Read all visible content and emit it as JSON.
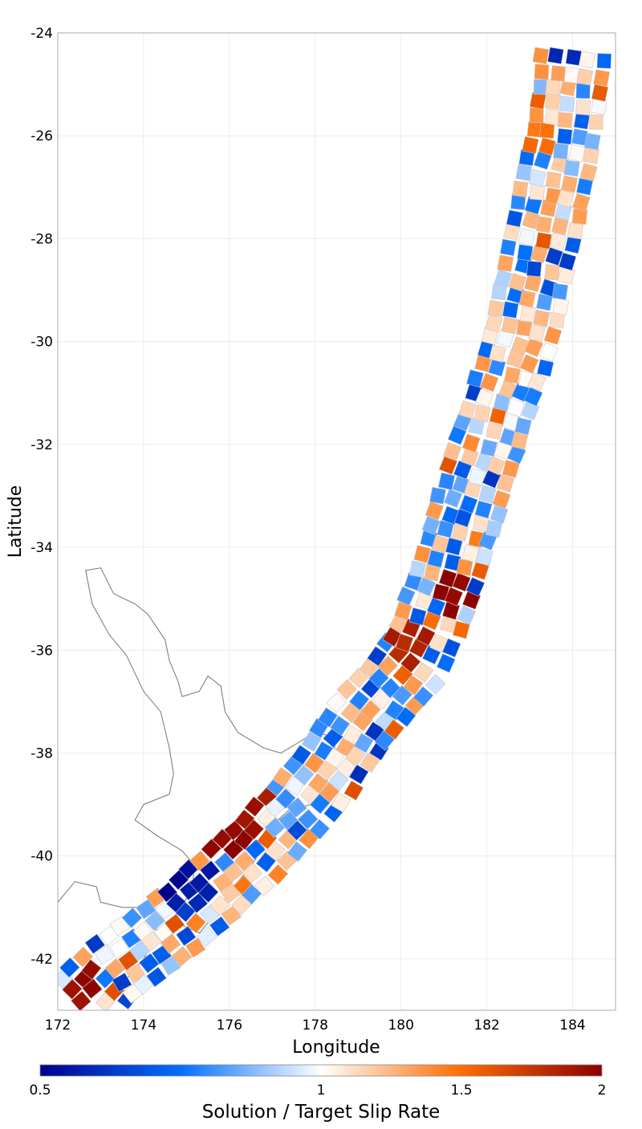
{
  "map": {
    "xlabel": "Longitude",
    "ylabel": "Latitude",
    "xlim": [
      172,
      185
    ],
    "ylim": [
      -43,
      -24
    ],
    "x_ticks": [
      {
        "value": 172,
        "label": "172"
      },
      {
        "value": 174,
        "label": "174"
      },
      {
        "value": 176,
        "label": "176"
      },
      {
        "value": 178,
        "label": "178"
      },
      {
        "value": 180,
        "label": "180"
      },
      {
        "value": 182,
        "label": "182"
      },
      {
        "value": 184,
        "label": "184"
      }
    ],
    "y_ticks": [
      {
        "value": -24,
        "label": "-24"
      },
      {
        "value": -26,
        "label": "-26"
      },
      {
        "value": -28,
        "label": "-28"
      },
      {
        "value": -30,
        "label": "-30"
      },
      {
        "value": -32,
        "label": "-32"
      },
      {
        "value": -34,
        "label": "-34"
      },
      {
        "value": -36,
        "label": "-36"
      },
      {
        "value": -38,
        "label": "-38"
      },
      {
        "value": -40,
        "label": "-40"
      },
      {
        "value": -42,
        "label": "-42"
      }
    ],
    "grid": true,
    "coastline_color": "#808080"
  },
  "colorbar": {
    "title": "Solution / Target Slip Rate",
    "range": [
      0.5,
      2
    ],
    "ticks": [
      {
        "value": 0.5,
        "label": "0.5"
      },
      {
        "value": 1,
        "label": "1"
      },
      {
        "value": 1.5,
        "label": "1.5"
      },
      {
        "value": 2,
        "label": "2"
      }
    ],
    "colors": [
      "#00008b",
      "#0070ff",
      "#ffffff",
      "#ff6e00",
      "#8b0000"
    ]
  },
  "chart_data": {
    "type": "heatmap",
    "title": "",
    "xlabel": "Longitude",
    "ylabel": "Latitude",
    "xlim": [
      172,
      185
    ],
    "ylim": [
      -43,
      -24
    ],
    "value_range": [
      0.5,
      2
    ],
    "trace": [
      [
        172.4,
        -42.8
      ],
      [
        173.1,
        -42.2
      ],
      [
        173.9,
        -41.7
      ],
      [
        174.7,
        -41.2
      ],
      [
        175.5,
        -40.6
      ],
      [
        176.3,
        -40.0
      ],
      [
        177.0,
        -39.4
      ],
      [
        177.7,
        -38.8
      ],
      [
        178.3,
        -38.1
      ],
      [
        178.9,
        -37.4
      ],
      [
        179.5,
        -36.8
      ],
      [
        180.2,
        -36.1
      ],
      [
        180.6,
        -35.4
      ],
      [
        180.9,
        -34.6
      ],
      [
        181.2,
        -33.8
      ],
      [
        181.5,
        -33.0
      ],
      [
        181.8,
        -32.2
      ],
      [
        182.1,
        -31.4
      ],
      [
        182.4,
        -30.6
      ],
      [
        182.7,
        -29.8
      ],
      [
        182.9,
        -29.0
      ],
      [
        183.1,
        -28.2
      ],
      [
        183.3,
        -27.4
      ],
      [
        183.5,
        -26.6
      ],
      [
        183.7,
        -25.8
      ],
      [
        183.8,
        -25.0
      ],
      [
        183.9,
        -24.2
      ]
    ],
    "hotspots": [
      {
        "lon": 174.8,
        "lat": -40.7,
        "value": 0.5
      },
      {
        "lon": 175.3,
        "lat": -40.6,
        "value": 0.55
      },
      {
        "lon": 175.1,
        "lat": -40.8,
        "value": 0.6
      },
      {
        "lon": 175.8,
        "lat": -39.6,
        "value": 2.0
      },
      {
        "lon": 176.4,
        "lat": -39.1,
        "value": 1.95
      },
      {
        "lon": 176.6,
        "lat": -38.8,
        "value": 1.9
      },
      {
        "lon": 176.2,
        "lat": -39.3,
        "value": 1.95
      },
      {
        "lon": 172.6,
        "lat": -42.5,
        "value": 1.95
      },
      {
        "lon": 181.2,
        "lat": -34.9,
        "value": 2.0
      },
      {
        "lon": 180.2,
        "lat": -35.9,
        "value": 1.85
      },
      {
        "lon": 183.7,
        "lat": -24.2,
        "value": 0.6
      },
      {
        "lon": 183.0,
        "lat": -26.0,
        "value": 1.5
      }
    ]
  }
}
